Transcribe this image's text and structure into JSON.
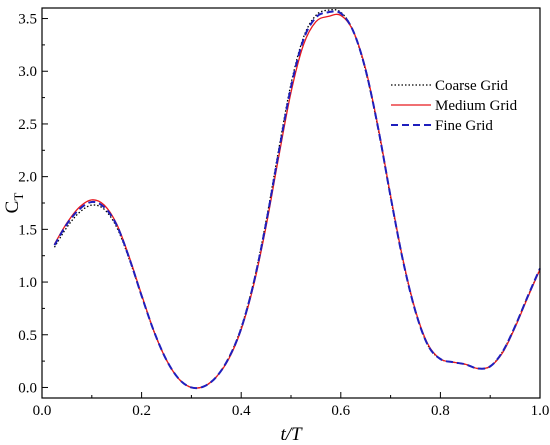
{
  "chart_data": {
    "type": "line",
    "xlabel": "t/T",
    "ylabel_main": "C",
    "ylabel_sub": "T",
    "xlim": [
      0.0,
      1.0
    ],
    "ylim": [
      -0.1,
      3.6
    ],
    "xticks": [
      "0.0",
      "0.2",
      "0.4",
      "0.6",
      "0.8",
      "1.0"
    ],
    "yticks": [
      "0.0",
      "0.5",
      "1.0",
      "1.5",
      "2.0",
      "2.5",
      "3.0",
      "3.5"
    ],
    "grid": false,
    "legend_position": "right",
    "series": [
      {
        "name": "Coarse Grid",
        "style": "dotted",
        "color": "#000000",
        "x": [
          0.025,
          0.05,
          0.075,
          0.1,
          0.125,
          0.15,
          0.175,
          0.2,
          0.225,
          0.25,
          0.275,
          0.3,
          0.325,
          0.35,
          0.375,
          0.4,
          0.425,
          0.45,
          0.475,
          0.5,
          0.525,
          0.55,
          0.575,
          0.6,
          0.625,
          0.65,
          0.675,
          0.7,
          0.725,
          0.75,
          0.775,
          0.8,
          0.825,
          0.85,
          0.875,
          0.9,
          0.925,
          0.95,
          0.975,
          1.0
        ],
        "y": [
          1.33,
          1.52,
          1.66,
          1.73,
          1.69,
          1.52,
          1.22,
          0.87,
          0.53,
          0.26,
          0.08,
          0.0,
          0.01,
          0.1,
          0.28,
          0.57,
          1.0,
          1.58,
          2.25,
          2.88,
          3.32,
          3.53,
          3.58,
          3.56,
          3.38,
          3.0,
          2.45,
          1.8,
          1.2,
          0.72,
          0.4,
          0.27,
          0.24,
          0.22,
          0.18,
          0.2,
          0.34,
          0.58,
          0.86,
          1.12
        ]
      },
      {
        "name": "Medium Grid",
        "style": "solid",
        "color": "#e8191f",
        "x": [
          0.025,
          0.05,
          0.075,
          0.1,
          0.125,
          0.15,
          0.175,
          0.2,
          0.225,
          0.25,
          0.275,
          0.3,
          0.325,
          0.35,
          0.375,
          0.4,
          0.425,
          0.45,
          0.475,
          0.5,
          0.525,
          0.55,
          0.575,
          0.6,
          0.625,
          0.65,
          0.675,
          0.7,
          0.725,
          0.75,
          0.775,
          0.8,
          0.825,
          0.85,
          0.875,
          0.9,
          0.925,
          0.95,
          0.975,
          1.0
        ],
        "y": [
          1.36,
          1.56,
          1.71,
          1.78,
          1.73,
          1.55,
          1.24,
          0.88,
          0.53,
          0.26,
          0.08,
          0.0,
          0.01,
          0.1,
          0.27,
          0.55,
          0.97,
          1.53,
          2.18,
          2.8,
          3.25,
          3.47,
          3.52,
          3.53,
          3.38,
          3.02,
          2.47,
          1.82,
          1.21,
          0.73,
          0.41,
          0.27,
          0.24,
          0.22,
          0.18,
          0.2,
          0.33,
          0.57,
          0.85,
          1.12
        ]
      },
      {
        "name": "Fine Grid",
        "style": "dashed",
        "color": "#1f1fbd",
        "x": [
          0.025,
          0.05,
          0.075,
          0.1,
          0.125,
          0.15,
          0.175,
          0.2,
          0.225,
          0.25,
          0.275,
          0.3,
          0.325,
          0.35,
          0.375,
          0.4,
          0.425,
          0.45,
          0.475,
          0.5,
          0.525,
          0.55,
          0.575,
          0.6,
          0.625,
          0.65,
          0.675,
          0.7,
          0.725,
          0.75,
          0.775,
          0.8,
          0.825,
          0.85,
          0.875,
          0.9,
          0.925,
          0.95,
          0.975,
          1.0
        ],
        "y": [
          1.35,
          1.55,
          1.69,
          1.76,
          1.71,
          1.54,
          1.23,
          0.87,
          0.53,
          0.26,
          0.08,
          0.0,
          0.01,
          0.1,
          0.28,
          0.56,
          0.99,
          1.56,
          2.22,
          2.85,
          3.3,
          3.51,
          3.56,
          3.55,
          3.38,
          3.01,
          2.46,
          1.81,
          1.2,
          0.72,
          0.4,
          0.27,
          0.24,
          0.22,
          0.18,
          0.2,
          0.34,
          0.58,
          0.86,
          1.13
        ]
      }
    ]
  }
}
